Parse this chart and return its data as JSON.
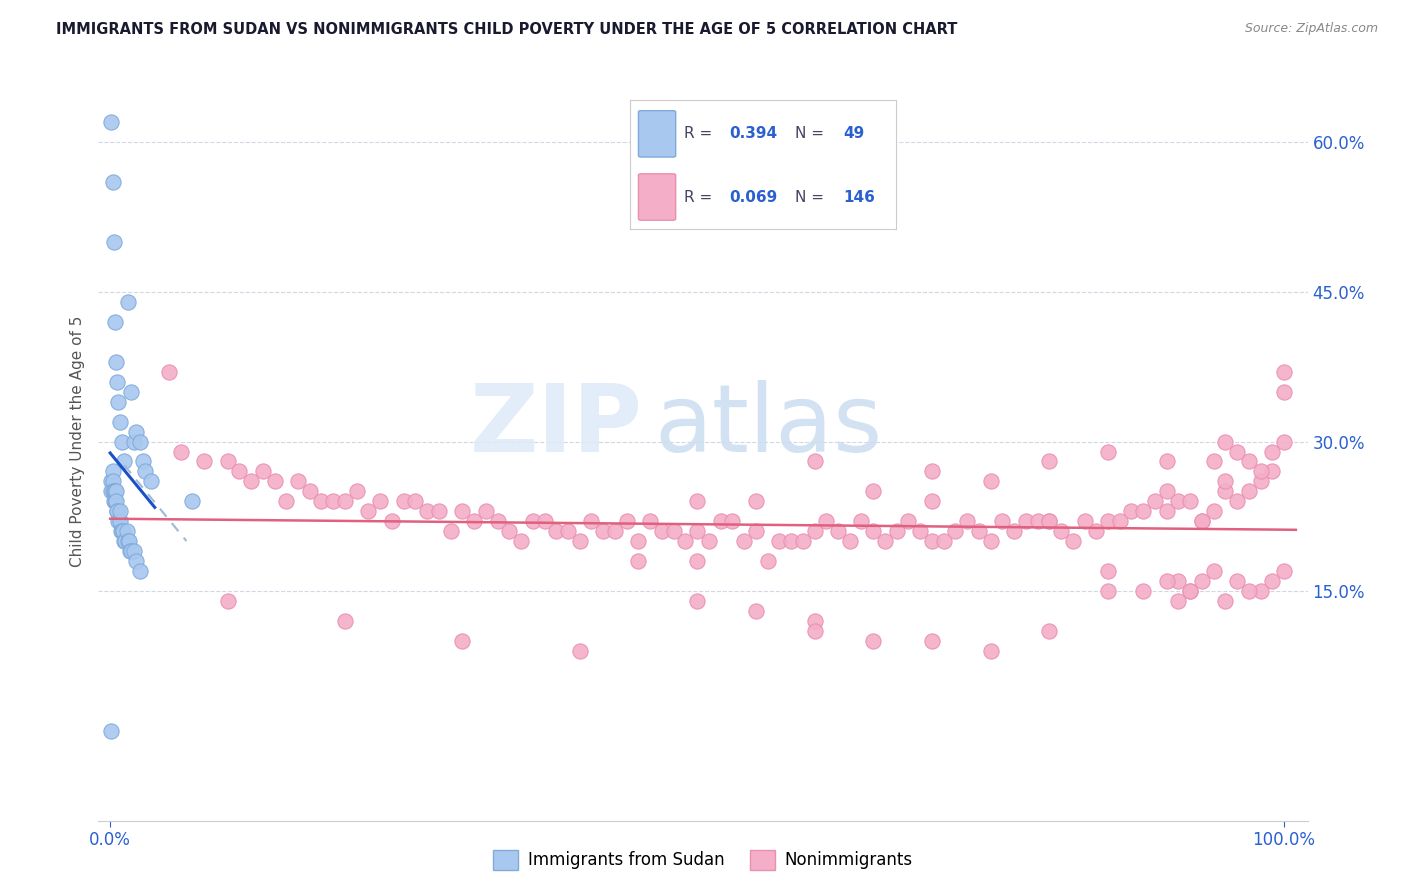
{
  "title": "IMMIGRANTS FROM SUDAN VS NONIMMIGRANTS CHILD POVERTY UNDER THE AGE OF 5 CORRELATION CHART",
  "source": "Source: ZipAtlas.com",
  "ylabel": "Child Poverty Under the Age of 5",
  "color_immigrants": "#a8c8f0",
  "color_nonimmigrants": "#f4aec8",
  "color_blue_line": "#1a50c8",
  "color_pink_line": "#e06080",
  "color_dash": "#a0b8d8",
  "color_blue_text": "#2a60d0",
  "color_grid": "#d0d8e8",
  "ytick_values": [
    0.6,
    0.45,
    0.3,
    0.15
  ],
  "ytick_labels": [
    "60.0%",
    "45.0%",
    "30.0%",
    "15.0%"
  ],
  "xlim": [
    -0.01,
    1.02
  ],
  "ylim": [
    -0.08,
    0.68
  ],
  "legend_r1": "0.394",
  "legend_n1": "49",
  "legend_r2": "0.069",
  "legend_n2": "146",
  "sudan_x": [
    0.001,
    0.002,
    0.003,
    0.004,
    0.005,
    0.006,
    0.007,
    0.008,
    0.01,
    0.012,
    0.015,
    0.018,
    0.02,
    0.022,
    0.025,
    0.028,
    0.03,
    0.035,
    0.001,
    0.001,
    0.002,
    0.002,
    0.002,
    0.003,
    0.003,
    0.004,
    0.004,
    0.005,
    0.005,
    0.006,
    0.006,
    0.007,
    0.008,
    0.008,
    0.009,
    0.01,
    0.011,
    0.012,
    0.013,
    0.014,
    0.015,
    0.016,
    0.017,
    0.018,
    0.02,
    0.022,
    0.025,
    0.07,
    0.001
  ],
  "sudan_y": [
    0.62,
    0.56,
    0.5,
    0.42,
    0.38,
    0.36,
    0.34,
    0.32,
    0.3,
    0.28,
    0.44,
    0.35,
    0.3,
    0.31,
    0.3,
    0.28,
    0.27,
    0.26,
    0.26,
    0.25,
    0.27,
    0.26,
    0.25,
    0.25,
    0.24,
    0.24,
    0.25,
    0.25,
    0.24,
    0.23,
    0.23,
    0.22,
    0.22,
    0.23,
    0.21,
    0.21,
    0.21,
    0.2,
    0.2,
    0.21,
    0.2,
    0.2,
    0.19,
    0.19,
    0.19,
    0.18,
    0.17,
    0.24,
    0.01
  ],
  "nonimm_x": [
    0.05,
    0.06,
    0.08,
    0.1,
    0.11,
    0.12,
    0.13,
    0.14,
    0.15,
    0.16,
    0.17,
    0.18,
    0.19,
    0.2,
    0.21,
    0.22,
    0.23,
    0.24,
    0.25,
    0.26,
    0.27,
    0.28,
    0.29,
    0.3,
    0.31,
    0.32,
    0.33,
    0.34,
    0.35,
    0.36,
    0.37,
    0.38,
    0.39,
    0.4,
    0.41,
    0.42,
    0.43,
    0.44,
    0.45,
    0.46,
    0.47,
    0.48,
    0.49,
    0.5,
    0.51,
    0.52,
    0.53,
    0.54,
    0.55,
    0.56,
    0.57,
    0.58,
    0.59,
    0.6,
    0.61,
    0.62,
    0.63,
    0.64,
    0.65,
    0.66,
    0.67,
    0.68,
    0.69,
    0.7,
    0.71,
    0.72,
    0.73,
    0.74,
    0.75,
    0.76,
    0.77,
    0.78,
    0.79,
    0.8,
    0.81,
    0.82,
    0.83,
    0.84,
    0.85,
    0.86,
    0.87,
    0.88,
    0.89,
    0.9,
    0.91,
    0.92,
    0.93,
    0.94,
    0.95,
    0.96,
    0.97,
    0.98,
    0.99,
    1.0,
    0.1,
    0.2,
    0.3,
    0.4,
    0.5,
    0.6,
    0.7,
    0.8,
    0.9,
    1.0,
    0.95,
    0.97,
    0.98,
    0.99,
    1.0,
    0.96,
    0.94,
    0.93,
    0.92,
    0.91,
    0.5,
    0.55,
    0.6,
    0.65,
    0.7,
    0.75,
    0.8,
    0.85,
    0.9,
    0.95,
    0.45,
    0.5,
    0.55,
    0.6,
    0.65,
    0.7,
    0.75,
    0.8,
    0.85,
    0.9,
    0.92,
    0.94,
    0.96,
    0.98,
    0.85,
    0.88,
    0.91,
    0.93,
    0.95,
    0.97,
    0.99,
    1.0
  ],
  "nonimm_y": [
    0.37,
    0.29,
    0.28,
    0.28,
    0.27,
    0.26,
    0.27,
    0.26,
    0.24,
    0.26,
    0.25,
    0.24,
    0.24,
    0.24,
    0.25,
    0.23,
    0.24,
    0.22,
    0.24,
    0.24,
    0.23,
    0.23,
    0.21,
    0.23,
    0.22,
    0.23,
    0.22,
    0.21,
    0.2,
    0.22,
    0.22,
    0.21,
    0.21,
    0.2,
    0.22,
    0.21,
    0.21,
    0.22,
    0.2,
    0.22,
    0.21,
    0.21,
    0.2,
    0.21,
    0.2,
    0.22,
    0.22,
    0.2,
    0.21,
    0.18,
    0.2,
    0.2,
    0.2,
    0.21,
    0.22,
    0.21,
    0.2,
    0.22,
    0.21,
    0.2,
    0.21,
    0.22,
    0.21,
    0.2,
    0.2,
    0.21,
    0.22,
    0.21,
    0.2,
    0.22,
    0.21,
    0.22,
    0.22,
    0.22,
    0.21,
    0.2,
    0.22,
    0.21,
    0.22,
    0.22,
    0.23,
    0.23,
    0.24,
    0.23,
    0.24,
    0.24,
    0.22,
    0.23,
    0.25,
    0.24,
    0.25,
    0.26,
    0.27,
    0.37,
    0.14,
    0.12,
    0.1,
    0.09,
    0.18,
    0.12,
    0.24,
    0.22,
    0.25,
    0.35,
    0.26,
    0.28,
    0.27,
    0.29,
    0.3,
    0.29,
    0.28,
    0.22,
    0.15,
    0.16,
    0.24,
    0.24,
    0.28,
    0.25,
    0.27,
    0.26,
    0.28,
    0.29,
    0.28,
    0.3,
    0.18,
    0.14,
    0.13,
    0.11,
    0.1,
    0.1,
    0.09,
    0.11,
    0.15,
    0.16,
    0.15,
    0.17,
    0.16,
    0.15,
    0.17,
    0.15,
    0.14,
    0.16,
    0.14,
    0.15,
    0.16,
    0.17
  ]
}
